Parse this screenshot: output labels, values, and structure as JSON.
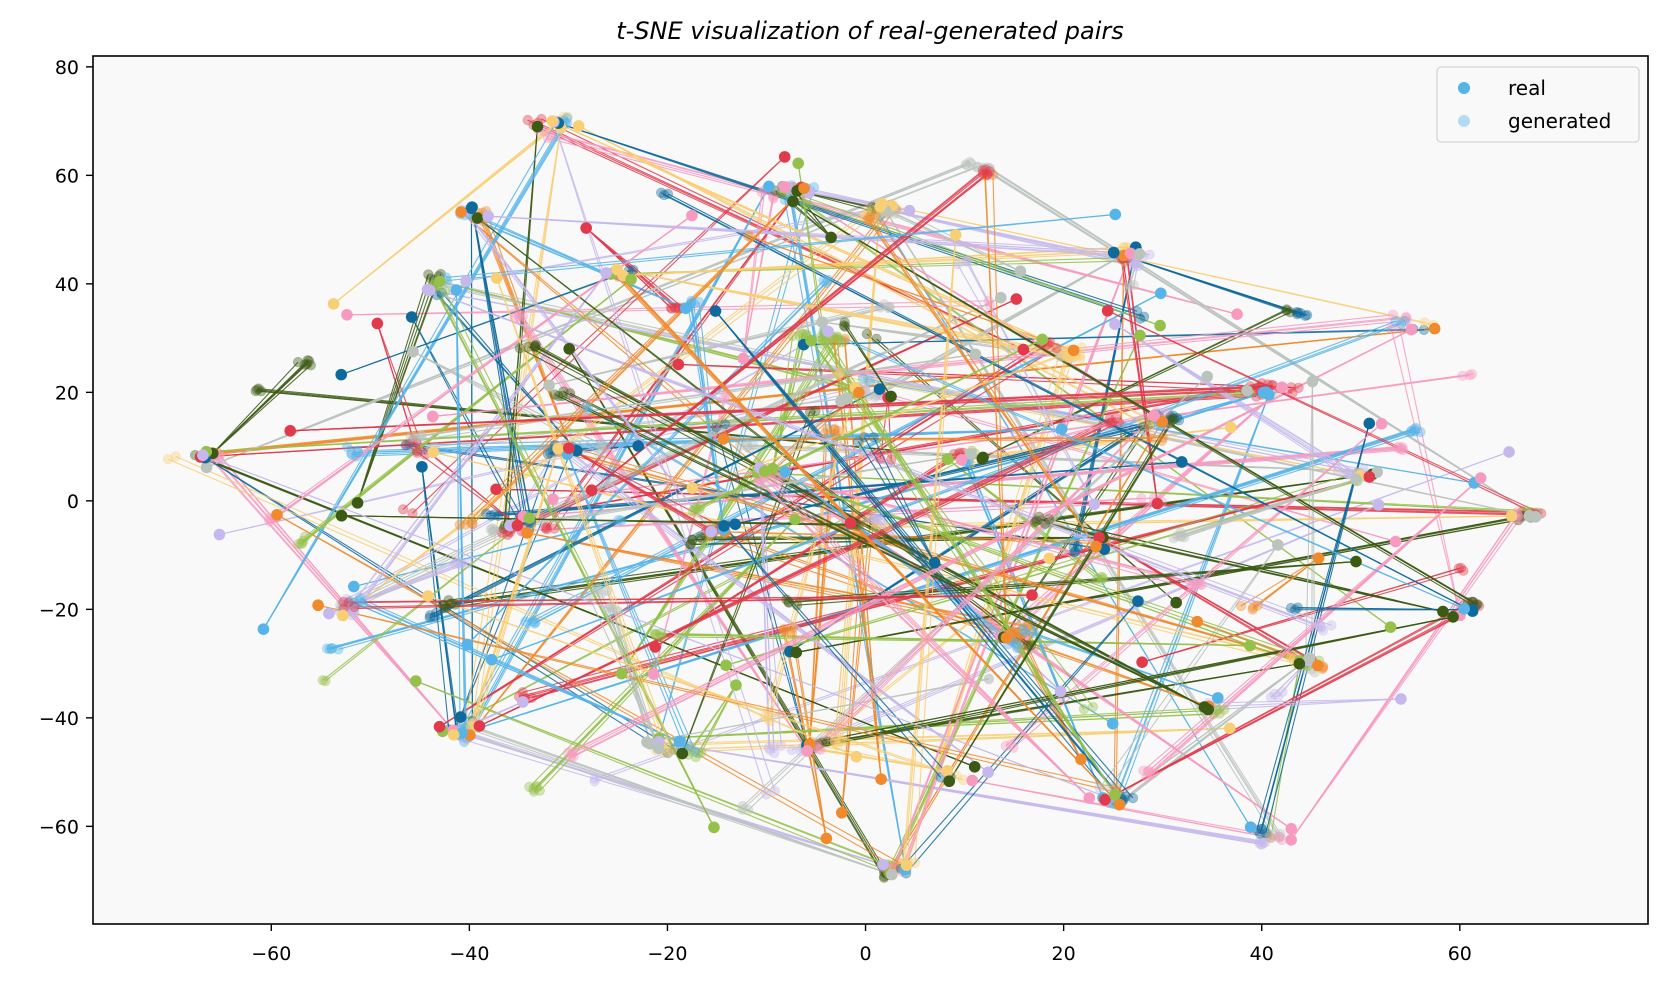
{
  "chart_data": {
    "type": "scatter",
    "title": "t-SNE visualization of real-generated pairs",
    "xlabel": "",
    "ylabel": "",
    "xlim": [
      -78,
      79
    ],
    "ylim": [
      -78,
      82
    ],
    "xticks": [
      -60,
      -40,
      -20,
      0,
      20,
      40,
      60
    ],
    "yticks": [
      80,
      60,
      40,
      20,
      0,
      -20,
      -40,
      -60
    ],
    "xtick_labels": [
      "−60",
      "−40",
      "−20",
      "0",
      "20",
      "40",
      "60"
    ],
    "ytick_labels": [
      "80",
      "60",
      "40",
      "20",
      "0",
      "−20",
      "−40",
      "−60"
    ],
    "grid": false,
    "legend": {
      "position": "top-right",
      "entries": [
        {
          "label": "real",
          "color": "#56b4e9"
        },
        {
          "label": "generated",
          "color": "#b3dcf2"
        }
      ]
    },
    "series": [
      {
        "name": "real",
        "color": "#56b4e9",
        "note_alpha": 1.0
      },
      {
        "name": "generated",
        "color": "#56b4e9",
        "note_alpha": 0.4
      }
    ],
    "palette": [
      "#56b4e9",
      "#0e6a9c",
      "#e03a4b",
      "#f08a2c",
      "#f9cf76",
      "#95c14a",
      "#3c5a14",
      "#bbc3bd",
      "#c6b8ec",
      "#f79ac0"
    ],
    "clusters": [
      {
        "x": -31,
        "y": 70
      },
      {
        "x": -8,
        "y": 57
      },
      {
        "x": 12,
        "y": 61
      },
      {
        "x": 2,
        "y": 54
      },
      {
        "x": -40,
        "y": 53
      },
      {
        "x": -43,
        "y": 40
      },
      {
        "x": -25,
        "y": 42
      },
      {
        "x": -18,
        "y": 36
      },
      {
        "x": -67,
        "y": 8
      },
      {
        "x": -53,
        "y": -20
      },
      {
        "x": 55,
        "y": 32
      },
      {
        "x": 67,
        "y": -3
      },
      {
        "x": 60,
        "y": -20
      },
      {
        "x": 35,
        "y": -38
      },
      {
        "x": 42,
        "y": -61
      },
      {
        "x": 3,
        "y": -68
      },
      {
        "x": -40,
        "y": -42
      },
      {
        "x": 27,
        "y": 45
      },
      {
        "x": 10,
        "y": 8
      },
      {
        "x": 0,
        "y": -5
      },
      {
        "x": -10,
        "y": 5
      },
      {
        "x": 20,
        "y": 28
      },
      {
        "x": 25,
        "y": -7
      },
      {
        "x": -30,
        "y": 10
      },
      {
        "x": 50,
        "y": 5
      },
      {
        "x": -20,
        "y": -45
      },
      {
        "x": 10,
        "y": -50
      },
      {
        "x": 25,
        "y": -55
      },
      {
        "x": -5,
        "y": -45
      },
      {
        "x": 45,
        "y": -30
      },
      {
        "x": -45,
        "y": 10
      },
      {
        "x": 30,
        "y": 15
      },
      {
        "x": -5,
        "y": 30
      },
      {
        "x": -35,
        "y": -5
      },
      {
        "x": 15,
        "y": -25
      },
      {
        "x": 40,
        "y": 20
      },
      {
        "x": -15,
        "y": -5
      },
      {
        "x": 0,
        "y": 20
      }
    ],
    "pair_count": 260,
    "random_seed": 20240517
  }
}
